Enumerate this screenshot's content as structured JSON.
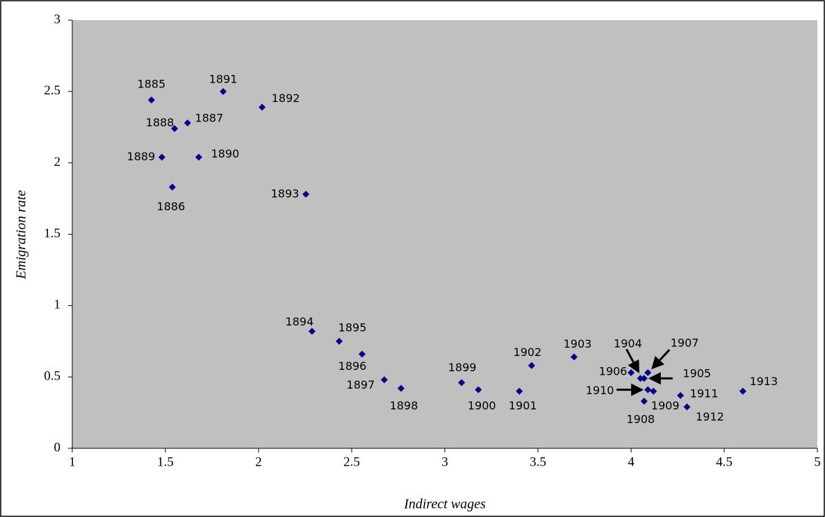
{
  "chart_data": {
    "type": "scatter",
    "x_label": "Indirect wages",
    "y_label": "Emigration rate",
    "xlim": [
      1,
      5
    ],
    "xticks": [
      1,
      1.5,
      2,
      2.5,
      3,
      3.5,
      4,
      4.5,
      5
    ],
    "ylim": [
      0,
      3
    ],
    "yticks": [
      0,
      0.5,
      1,
      1.5,
      2,
      2.5,
      3
    ],
    "plot_background": "#c0c0c0",
    "series": [
      {
        "color": "#00008b",
        "labels": [
          "1885",
          "1886",
          "1887",
          "1888",
          "1889",
          "1890",
          "1891",
          "1892",
          "1893",
          "1894",
          "1895",
          "1896",
          "1897",
          "1898",
          "1899",
          "1900",
          "1901",
          "1902",
          "1903",
          "1904",
          "1905",
          "1906",
          "1907",
          "1908",
          "1909",
          "1910",
          "1911",
          "1912",
          "1913"
        ],
        "x": [
          1.425,
          1.537,
          1.619,
          1.549,
          1.481,
          1.679,
          1.81,
          2.019,
          2.254,
          2.287,
          2.433,
          2.556,
          2.675,
          2.765,
          3.09,
          3.18,
          3.4,
          3.466,
          3.694,
          4.05,
          4.07,
          4.0,
          4.09,
          4.07,
          4.12,
          4.09,
          4.265,
          4.3,
          4.6
        ],
        "values": [
          2.44,
          1.83,
          2.28,
          2.24,
          2.04,
          2.04,
          2.5,
          2.39,
          1.78,
          0.82,
          0.75,
          0.66,
          0.48,
          0.42,
          0.46,
          0.41,
          0.4,
          0.58,
          0.64,
          0.49,
          0.49,
          0.53,
          0.53,
          0.33,
          0.4,
          0.41,
          0.37,
          0.29,
          0.4
        ]
      }
    ]
  }
}
